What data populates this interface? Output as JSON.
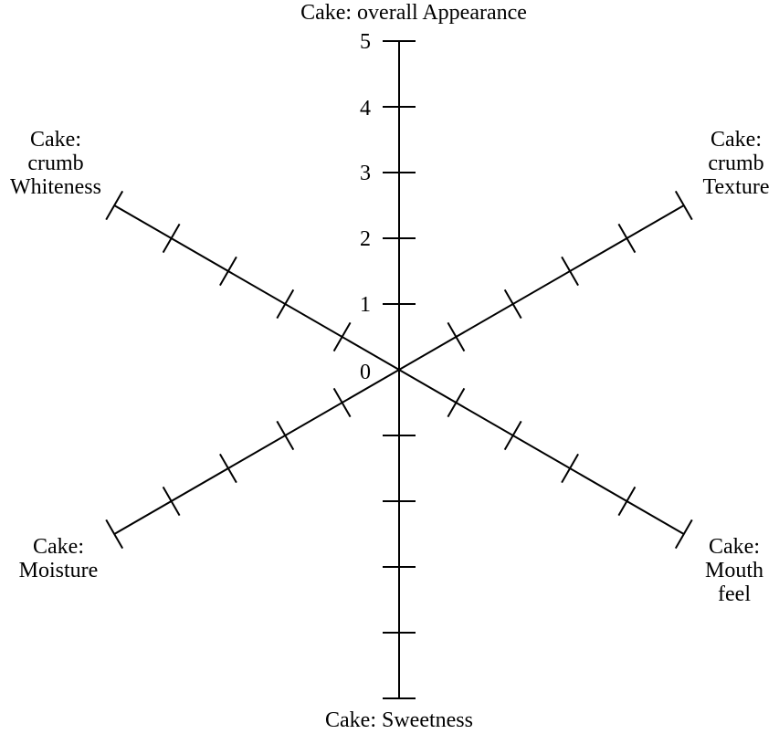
{
  "chart_data": {
    "type": "radar",
    "title": "",
    "axes": [
      {
        "key": "appearance",
        "label_lines": [
          "Cake: overall Appearance"
        ]
      },
      {
        "key": "texture",
        "label_lines": [
          "Cake:",
          "crumb",
          "Texture"
        ]
      },
      {
        "key": "mouthfeel",
        "label_lines": [
          "Cake:",
          "Mouth",
          "feel"
        ]
      },
      {
        "key": "sweetness",
        "label_lines": [
          "Cake: Sweetness"
        ]
      },
      {
        "key": "moisture",
        "label_lines": [
          "Cake:",
          "Moisture"
        ]
      },
      {
        "key": "whiteness",
        "label_lines": [
          "Cake:",
          "crumb",
          "Whiteness"
        ]
      }
    ],
    "range": [
      0,
      5
    ],
    "tick_labels": [
      "0",
      "1",
      "2",
      "3",
      "4",
      "5"
    ],
    "series": [],
    "grid": false,
    "legend": "none"
  }
}
